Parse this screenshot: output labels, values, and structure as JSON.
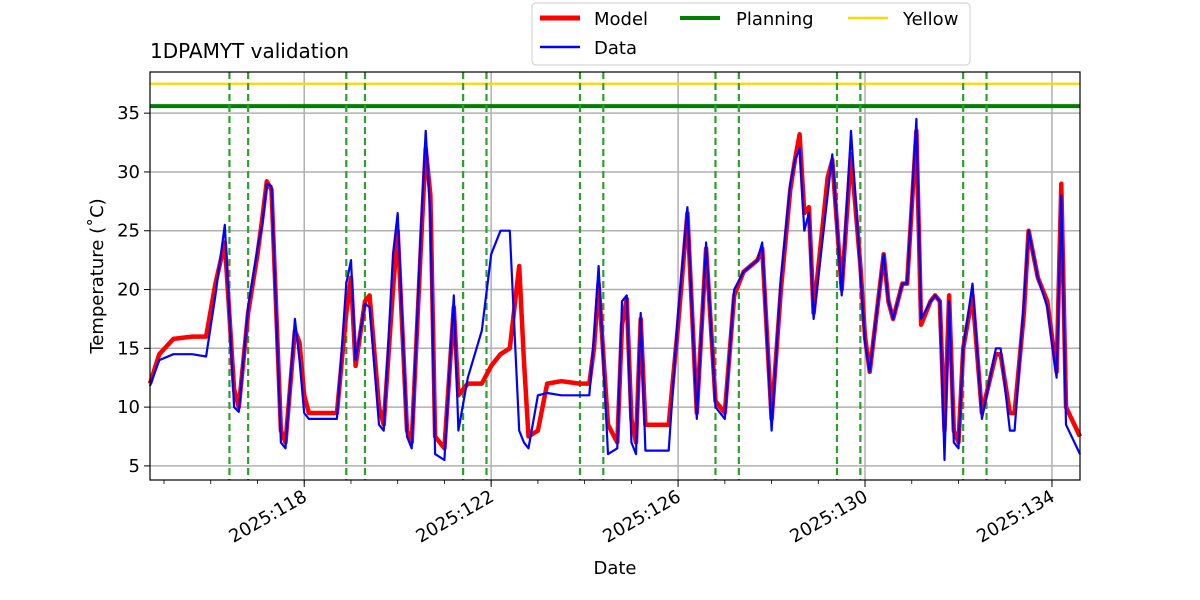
{
  "chart_data": {
    "type": "line",
    "title": "1DPAMYT validation",
    "xlabel": "Date",
    "ylabel": "Temperature ($^\\circ$C)",
    "ylabel_display": "Temperature (˚C)",
    "xlim": [
      114.7,
      134.6
    ],
    "ylim": [
      3.8,
      38.5
    ],
    "x_ticks": [
      {
        "value": 118,
        "label": "2025:118"
      },
      {
        "value": 122,
        "label": "2025:122"
      },
      {
        "value": 126,
        "label": "2025:126"
      },
      {
        "value": 130,
        "label": "2025:130"
      },
      {
        "value": 134,
        "label": "2025:134"
      }
    ],
    "y_ticks": [
      5,
      10,
      15,
      20,
      25,
      30,
      35
    ],
    "grid": true,
    "legend": {
      "placement": "top-center, above plot",
      "entries": [
        {
          "label": "Model",
          "color": "#ff0000"
        },
        {
          "label": "Data",
          "color": "#0000ff"
        },
        {
          "label": "Planning",
          "color": "#008000"
        },
        {
          "label": "Yellow",
          "color": "#ffd700"
        }
      ]
    },
    "thresholds": [
      {
        "name": "Planning",
        "value": 35.6,
        "color": "#008000"
      },
      {
        "name": "Yellow",
        "value": 37.5,
        "color": "#ffd700"
      }
    ],
    "event_lines_x": [
      116.4,
      116.8,
      118.9,
      119.3,
      121.4,
      121.9,
      123.9,
      124.4,
      126.8,
      127.3,
      129.4,
      129.9,
      132.1,
      132.6
    ],
    "series": [
      {
        "name": "Model",
        "color": "#ff0000",
        "points": [
          [
            114.7,
            12.0
          ],
          [
            114.9,
            14.5
          ],
          [
            115.2,
            15.8
          ],
          [
            115.6,
            16.0
          ],
          [
            115.9,
            16.0
          ],
          [
            116.1,
            20.5
          ],
          [
            116.3,
            24.0
          ],
          [
            116.5,
            11.5
          ],
          [
            116.6,
            10.0
          ],
          [
            116.8,
            18.0
          ],
          [
            117.0,
            23.0
          ],
          [
            117.1,
            26.0
          ],
          [
            117.2,
            29.2
          ],
          [
            117.3,
            28.5
          ],
          [
            117.5,
            8.0
          ],
          [
            117.6,
            7.0
          ],
          [
            117.8,
            16.5
          ],
          [
            117.9,
            15.5
          ],
          [
            118.0,
            11.0
          ],
          [
            118.1,
            9.5
          ],
          [
            118.4,
            9.5
          ],
          [
            118.7,
            9.5
          ],
          [
            118.9,
            18.0
          ],
          [
            119.0,
            21.0
          ],
          [
            119.1,
            13.5
          ],
          [
            119.3,
            19.0
          ],
          [
            119.4,
            19.5
          ],
          [
            119.6,
            10.0
          ],
          [
            119.7,
            8.5
          ],
          [
            119.9,
            20.0
          ],
          [
            120.0,
            25.0
          ],
          [
            120.2,
            8.0
          ],
          [
            120.3,
            7.0
          ],
          [
            120.5,
            24.0
          ],
          [
            120.6,
            32.0
          ],
          [
            120.7,
            28.0
          ],
          [
            120.8,
            7.5
          ],
          [
            121.0,
            6.5
          ],
          [
            121.2,
            18.5
          ],
          [
            121.3,
            11.0
          ],
          [
            121.5,
            12.0
          ],
          [
            121.8,
            12.0
          ],
          [
            122.0,
            13.5
          ],
          [
            122.2,
            14.5
          ],
          [
            122.4,
            15.0
          ],
          [
            122.6,
            22.0
          ],
          [
            122.7,
            14.0
          ],
          [
            122.8,
            7.5
          ],
          [
            123.0,
            8.0
          ],
          [
            123.2,
            12.0
          ],
          [
            123.5,
            12.2
          ],
          [
            123.9,
            12.0
          ],
          [
            124.1,
            12.0
          ],
          [
            124.2,
            15.0
          ],
          [
            124.3,
            20.5
          ],
          [
            124.5,
            8.5
          ],
          [
            124.7,
            7.0
          ],
          [
            124.8,
            17.0
          ],
          [
            124.9,
            19.2
          ],
          [
            125.0,
            9.0
          ],
          [
            125.1,
            7.0
          ],
          [
            125.2,
            17.5
          ],
          [
            125.3,
            8.5
          ],
          [
            125.5,
            8.5
          ],
          [
            125.8,
            8.5
          ],
          [
            126.0,
            17.0
          ],
          [
            126.2,
            26.5
          ],
          [
            126.4,
            9.5
          ],
          [
            126.6,
            23.5
          ],
          [
            126.8,
            10.5
          ],
          [
            127.0,
            9.5
          ],
          [
            127.2,
            19.5
          ],
          [
            127.4,
            21.5
          ],
          [
            127.7,
            22.5
          ],
          [
            127.8,
            23.5
          ],
          [
            128.0,
            9.0
          ],
          [
            128.2,
            20.0
          ],
          [
            128.4,
            28.5
          ],
          [
            128.5,
            31.0
          ],
          [
            128.6,
            33.2
          ],
          [
            128.7,
            26.5
          ],
          [
            128.8,
            27.0
          ],
          [
            128.9,
            18.0
          ],
          [
            129.2,
            29.5
          ],
          [
            129.3,
            31.0
          ],
          [
            129.5,
            20.0
          ],
          [
            129.7,
            31.5
          ],
          [
            129.9,
            22.0
          ],
          [
            130.0,
            16.0
          ],
          [
            130.1,
            13.0
          ],
          [
            130.4,
            23.0
          ],
          [
            130.5,
            19.0
          ],
          [
            130.6,
            17.5
          ],
          [
            130.8,
            20.5
          ],
          [
            130.9,
            20.5
          ],
          [
            131.1,
            33.5
          ],
          [
            131.2,
            17.0
          ],
          [
            131.4,
            19.0
          ],
          [
            131.5,
            19.5
          ],
          [
            131.6,
            19.0
          ],
          [
            131.7,
            8.0
          ],
          [
            131.8,
            19.5
          ],
          [
            131.9,
            8.0
          ],
          [
            132.0,
            7.0
          ],
          [
            132.1,
            15.0
          ],
          [
            132.3,
            19.5
          ],
          [
            132.5,
            9.5
          ],
          [
            132.8,
            14.5
          ],
          [
            132.9,
            14.5
          ],
          [
            133.1,
            9.5
          ],
          [
            133.2,
            9.5
          ],
          [
            133.4,
            18.0
          ],
          [
            133.5,
            25.0
          ],
          [
            133.7,
            21.0
          ],
          [
            133.9,
            19.0
          ],
          [
            134.1,
            13.0
          ],
          [
            134.2,
            29.0
          ],
          [
            134.3,
            10.0
          ],
          [
            134.6,
            7.5
          ]
        ]
      },
      {
        "name": "Data",
        "color": "#0000ff",
        "points": [
          [
            114.7,
            11.8
          ],
          [
            114.9,
            14.0
          ],
          [
            115.2,
            14.5
          ],
          [
            115.6,
            14.5
          ],
          [
            115.9,
            14.3
          ],
          [
            116.1,
            19.5
          ],
          [
            116.3,
            25.5
          ],
          [
            116.5,
            10.0
          ],
          [
            116.6,
            9.6
          ],
          [
            116.8,
            18.5
          ],
          [
            117.0,
            23.5
          ],
          [
            117.1,
            25.5
          ],
          [
            117.2,
            29.0
          ],
          [
            117.3,
            28.8
          ],
          [
            117.5,
            7.0
          ],
          [
            117.6,
            6.5
          ],
          [
            117.8,
            17.5
          ],
          [
            117.9,
            14.0
          ],
          [
            118.0,
            9.5
          ],
          [
            118.1,
            9.0
          ],
          [
            118.4,
            9.0
          ],
          [
            118.7,
            9.0
          ],
          [
            118.9,
            20.5
          ],
          [
            119.0,
            22.5
          ],
          [
            119.1,
            14.0
          ],
          [
            119.3,
            18.8
          ],
          [
            119.4,
            18.5
          ],
          [
            119.6,
            8.5
          ],
          [
            119.7,
            8.0
          ],
          [
            119.9,
            23.0
          ],
          [
            120.0,
            26.5
          ],
          [
            120.2,
            7.5
          ],
          [
            120.3,
            6.5
          ],
          [
            120.5,
            25.5
          ],
          [
            120.6,
            33.5
          ],
          [
            120.7,
            26.0
          ],
          [
            120.8,
            6.0
          ],
          [
            121.0,
            5.5
          ],
          [
            121.2,
            19.5
          ],
          [
            121.3,
            8.0
          ],
          [
            121.5,
            12.5
          ],
          [
            121.8,
            16.5
          ],
          [
            122.0,
            23.0
          ],
          [
            122.2,
            25.0
          ],
          [
            122.4,
            25.0
          ],
          [
            122.6,
            8.0
          ],
          [
            122.7,
            7.0
          ],
          [
            122.8,
            6.5
          ],
          [
            123.0,
            11.0
          ],
          [
            123.2,
            11.2
          ],
          [
            123.5,
            11.0
          ],
          [
            123.9,
            11.0
          ],
          [
            124.1,
            11.0
          ],
          [
            124.2,
            16.0
          ],
          [
            124.3,
            22.0
          ],
          [
            124.5,
            6.0
          ],
          [
            124.7,
            6.5
          ],
          [
            124.8,
            19.0
          ],
          [
            124.9,
            19.5
          ],
          [
            125.0,
            7.0
          ],
          [
            125.1,
            6.0
          ],
          [
            125.2,
            18.0
          ],
          [
            125.3,
            6.3
          ],
          [
            125.5,
            6.3
          ],
          [
            125.8,
            6.3
          ],
          [
            126.0,
            18.0
          ],
          [
            126.2,
            27.0
          ],
          [
            126.4,
            9.0
          ],
          [
            126.6,
            24.0
          ],
          [
            126.8,
            10.0
          ],
          [
            127.0,
            9.0
          ],
          [
            127.2,
            20.0
          ],
          [
            127.4,
            21.5
          ],
          [
            127.7,
            22.5
          ],
          [
            127.8,
            24.0
          ],
          [
            128.0,
            8.0
          ],
          [
            128.2,
            21.0
          ],
          [
            128.4,
            29.0
          ],
          [
            128.5,
            31.0
          ],
          [
            128.6,
            32.0
          ],
          [
            128.7,
            25.0
          ],
          [
            128.8,
            26.5
          ],
          [
            128.9,
            17.5
          ],
          [
            129.2,
            28.0
          ],
          [
            129.3,
            31.5
          ],
          [
            129.5,
            19.5
          ],
          [
            129.7,
            33.5
          ],
          [
            129.9,
            21.5
          ],
          [
            130.0,
            15.5
          ],
          [
            130.1,
            13.0
          ],
          [
            130.4,
            23.0
          ],
          [
            130.5,
            19.0
          ],
          [
            130.6,
            17.5
          ],
          [
            130.8,
            20.5
          ],
          [
            130.9,
            20.5
          ],
          [
            131.1,
            34.5
          ],
          [
            131.2,
            17.5
          ],
          [
            131.4,
            19.0
          ],
          [
            131.5,
            19.5
          ],
          [
            131.6,
            19.0
          ],
          [
            131.7,
            5.5
          ],
          [
            131.8,
            19.0
          ],
          [
            131.9,
            7.0
          ],
          [
            132.0,
            6.5
          ],
          [
            132.1,
            15.0
          ],
          [
            132.3,
            20.5
          ],
          [
            132.5,
            9.0
          ],
          [
            132.8,
            15.0
          ],
          [
            132.9,
            15.0
          ],
          [
            133.1,
            8.0
          ],
          [
            133.2,
            8.0
          ],
          [
            133.4,
            19.0
          ],
          [
            133.5,
            25.0
          ],
          [
            133.7,
            21.0
          ],
          [
            133.9,
            18.5
          ],
          [
            134.1,
            12.5
          ],
          [
            134.2,
            28.0
          ],
          [
            134.3,
            8.5
          ],
          [
            134.6,
            6.0
          ]
        ]
      }
    ]
  }
}
